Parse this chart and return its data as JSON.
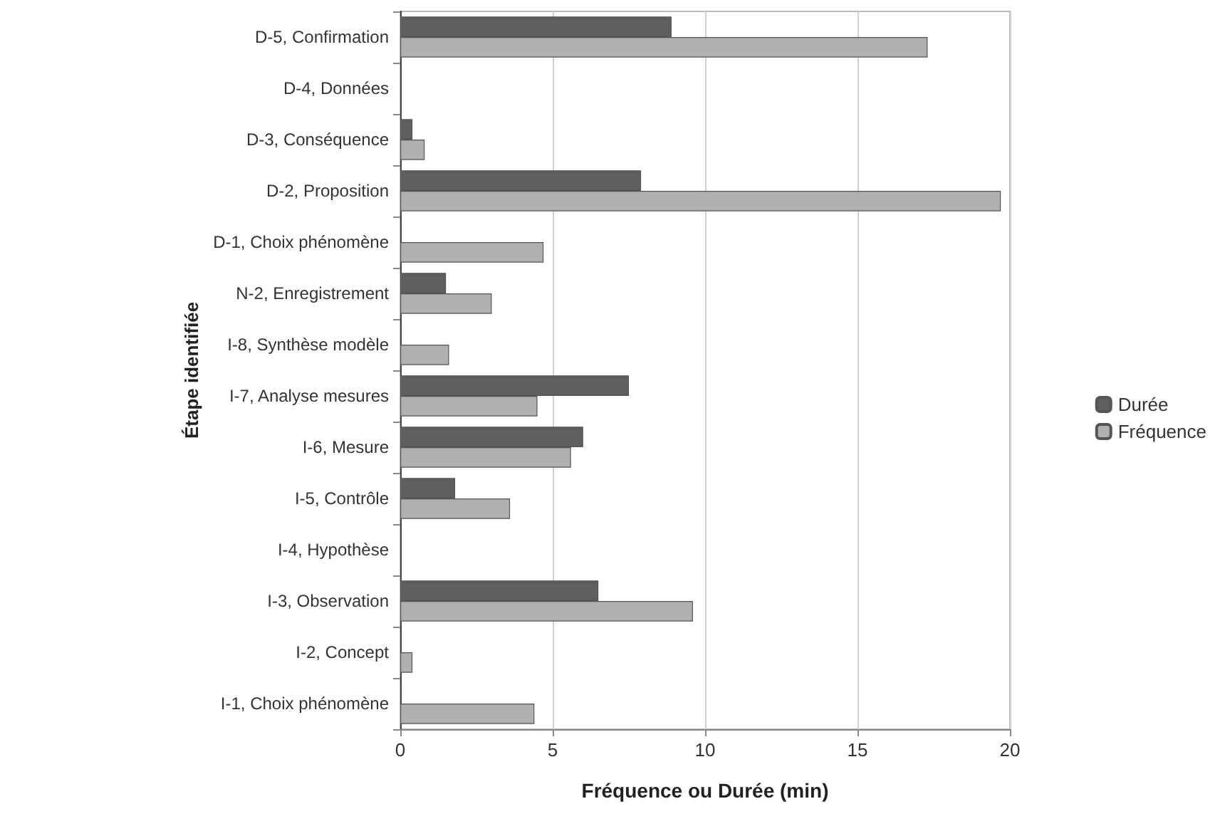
{
  "chart_data": {
    "type": "bar",
    "orientation": "horizontal",
    "xlabel": "Fréquence ou Durée (min)",
    "ylabel": "Étape identifiée",
    "categories": [
      "D-5, Confirmation",
      "D-4, Données",
      "D-3, Conséquence",
      "D-2, Proposition",
      "D-1, Choix phénomène",
      "N-2, Enregistrement",
      "I-8, Synthèse modèle",
      "I-7, Analyse mesures",
      "I-6, Mesure",
      "I-5, Contrôle",
      "I-4, Hypothèse",
      "I-3, Observation",
      "I-2, Concept",
      "I-1, Choix phénomène"
    ],
    "series": [
      {
        "name": "Durée",
        "color": "#5f5f5f",
        "values": [
          8.9,
          0,
          0.4,
          7.9,
          0,
          1.5,
          0,
          7.5,
          6.0,
          1.8,
          0,
          6.5,
          0,
          0
        ]
      },
      {
        "name": "Fréquence",
        "color": "#b0b0b0",
        "values": [
          17.3,
          0,
          0.8,
          19.7,
          4.7,
          3.0,
          1.6,
          4.5,
          5.6,
          3.6,
          0,
          9.6,
          0.4,
          4.4
        ]
      }
    ],
    "xlim": [
      0,
      20
    ],
    "xticks": [
      0,
      5,
      10,
      15,
      20
    ],
    "grid": "x",
    "legend": "right"
  }
}
